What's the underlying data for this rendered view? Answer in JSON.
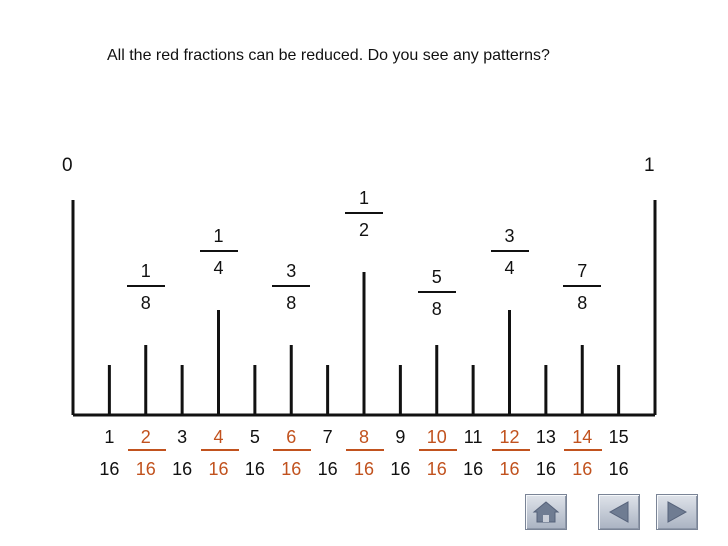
{
  "title": "All the red fractions can be reduced.  Do you see any patterns?",
  "ruler": {
    "start_label": "0",
    "end_label": "1",
    "denominator": "16",
    "reduced_color": "#c1521e",
    "ticks": [
      {
        "n": 1,
        "reduced": false
      },
      {
        "n": 2,
        "reduced": true,
        "simplified": {
          "num": "1",
          "den": "8"
        }
      },
      {
        "n": 3,
        "reduced": false
      },
      {
        "n": 4,
        "reduced": true,
        "simplified": {
          "num": "1",
          "den": "4"
        }
      },
      {
        "n": 5,
        "reduced": false
      },
      {
        "n": 6,
        "reduced": true,
        "simplified": {
          "num": "3",
          "den": "8"
        }
      },
      {
        "n": 7,
        "reduced": false
      },
      {
        "n": 8,
        "reduced": true,
        "simplified": {
          "num": "1",
          "den": "2"
        }
      },
      {
        "n": 9,
        "reduced": false
      },
      {
        "n": 10,
        "reduced": true,
        "simplified": {
          "num": "5",
          "den": "8"
        }
      },
      {
        "n": 11,
        "reduced": false
      },
      {
        "n": 12,
        "reduced": true,
        "simplified": {
          "num": "3",
          "den": "4"
        }
      },
      {
        "n": 13,
        "reduced": false
      },
      {
        "n": 14,
        "reduced": true,
        "simplified": {
          "num": "7",
          "den": "8"
        }
      },
      {
        "n": 15,
        "reduced": false
      }
    ]
  },
  "nav": {
    "home_icon": "home-icon",
    "back_icon": "triangle-left-icon",
    "forward_icon": "triangle-right-icon"
  }
}
